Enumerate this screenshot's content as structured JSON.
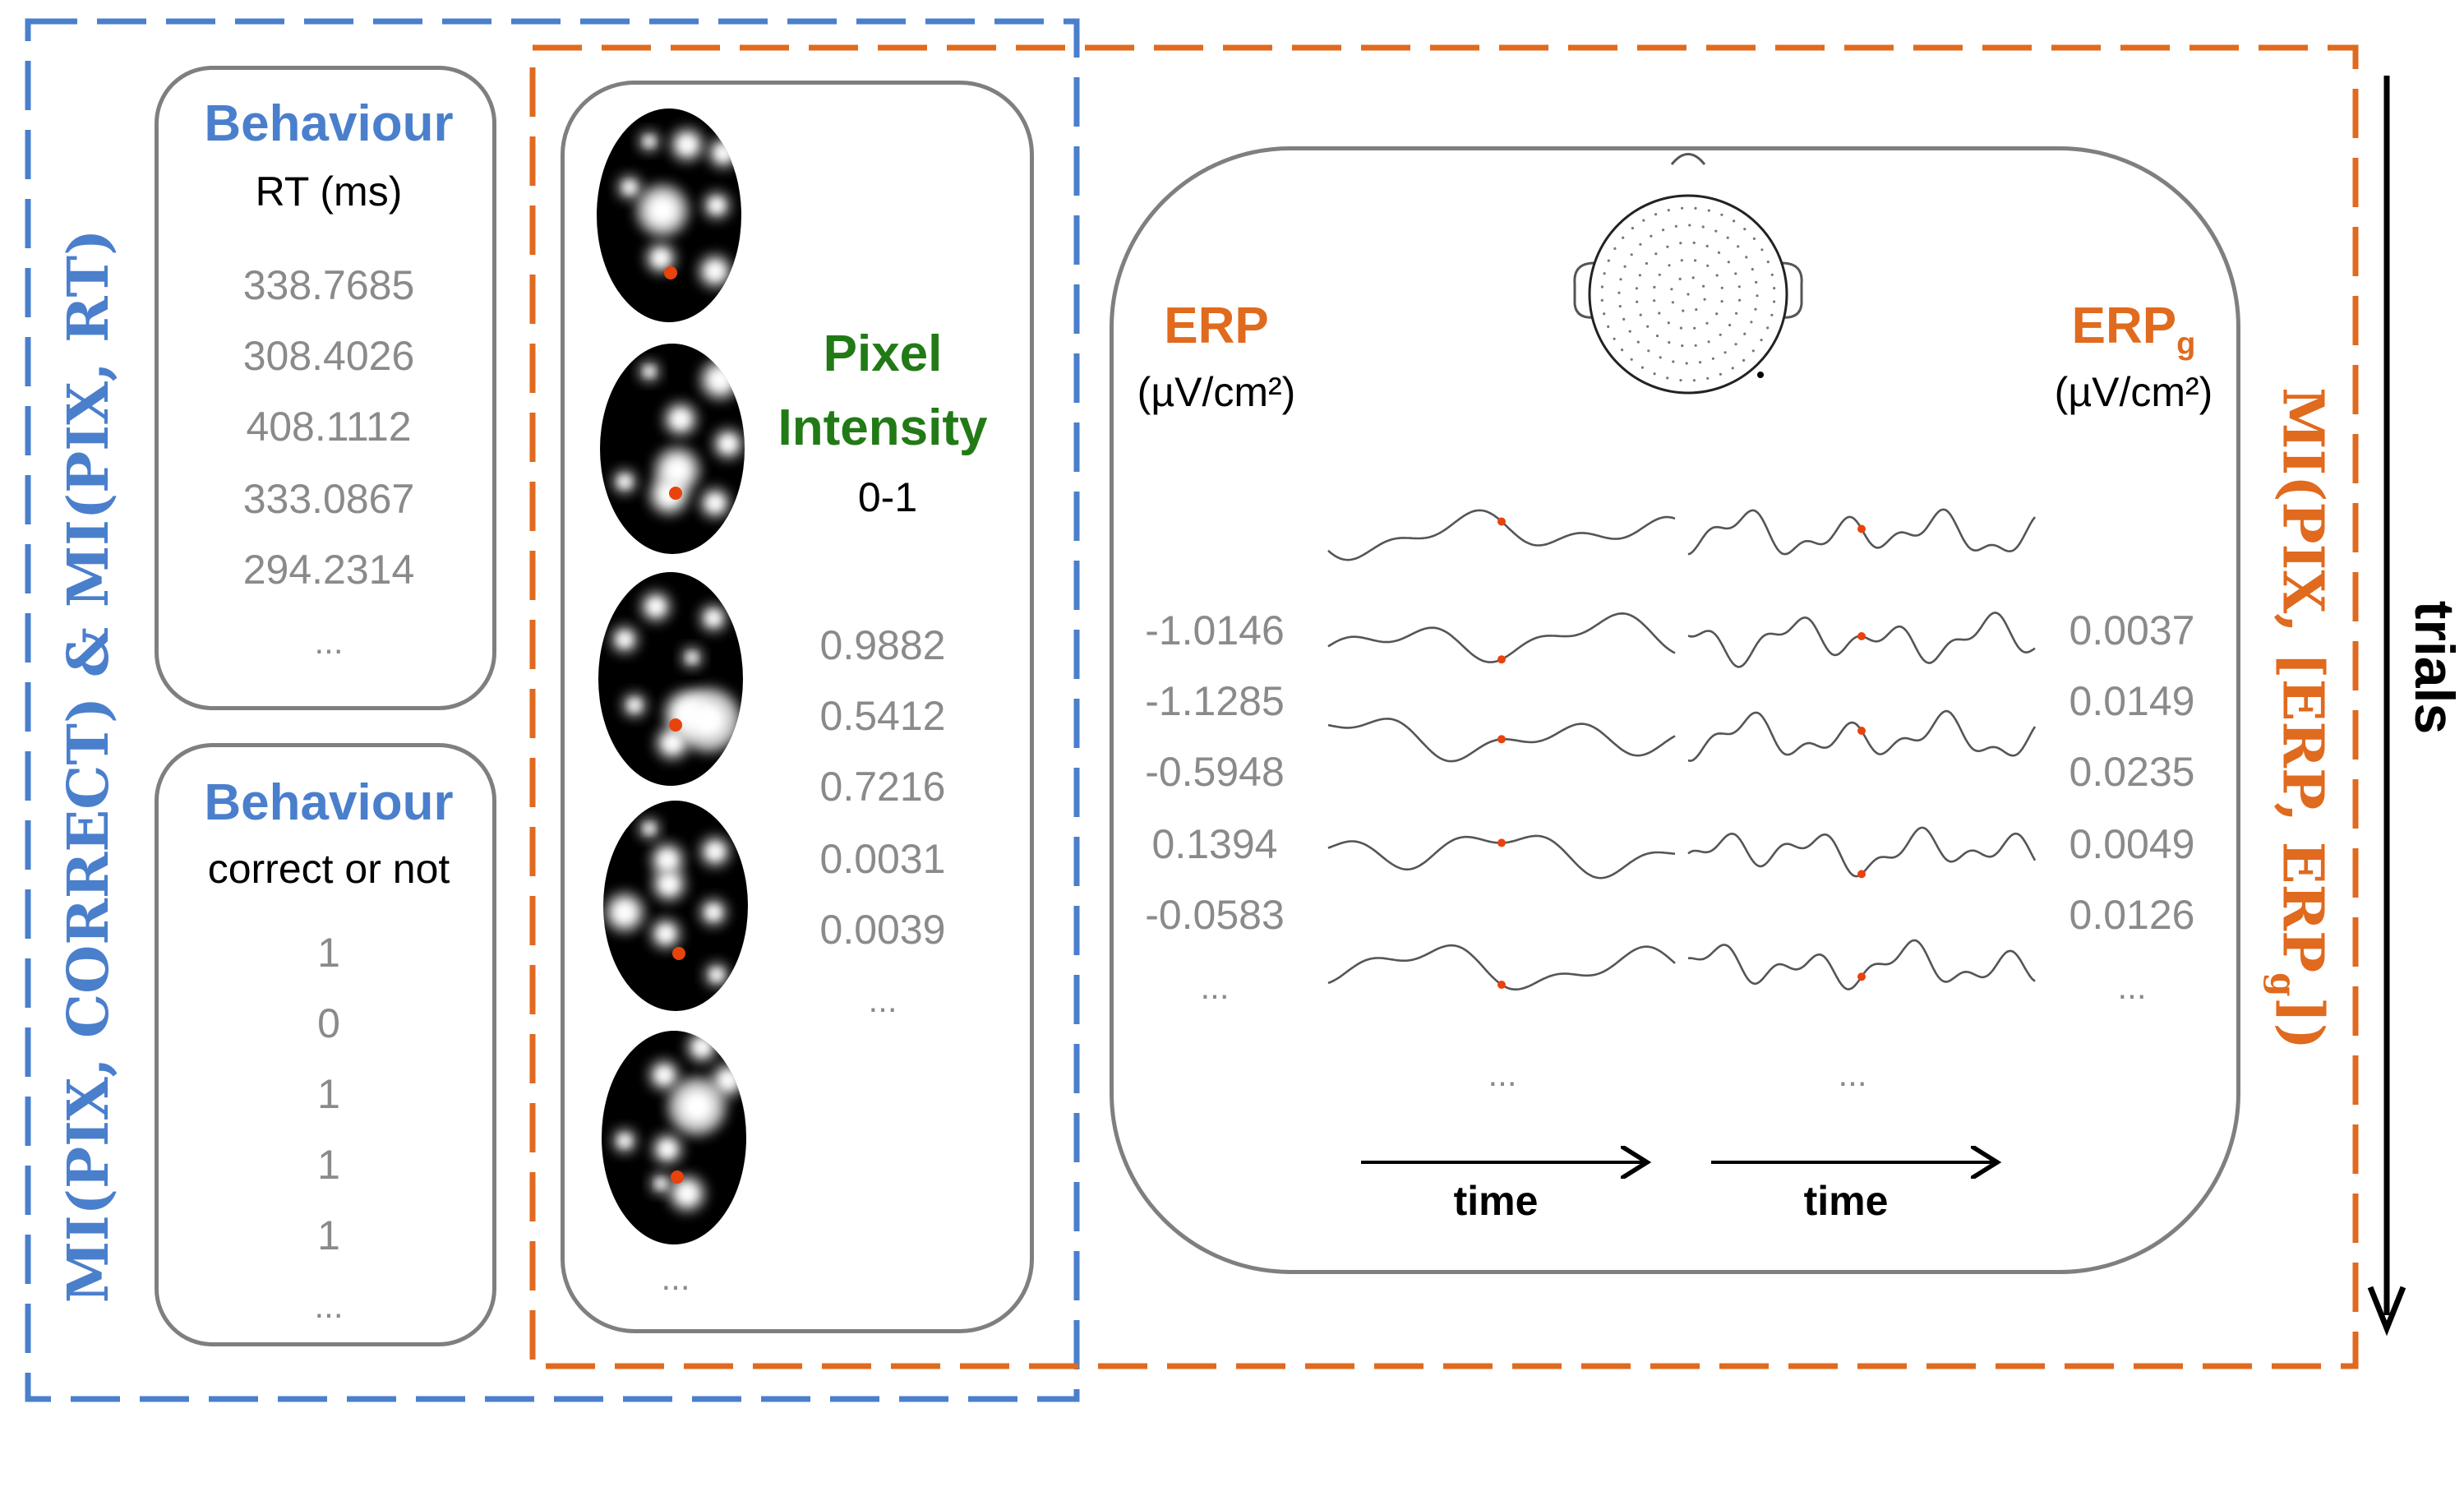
{
  "colors": {
    "blue": "#4a7fcc",
    "orange": "#e06a1e",
    "green": "#217a16",
    "gray_text": "#8a8a8a",
    "panel_border": "#7f7f7f"
  },
  "left_label": "MI(PIX, CORRECT) & MI(PIX, RT)",
  "right_label": {
    "main": "MI(PIX, [ERP, ERP",
    "sub": "g",
    "close": "])"
  },
  "trials_label": "trials",
  "rt_panel": {
    "title": "Behaviour",
    "subtitle": "RT (ms)",
    "values": [
      "338.7685",
      "308.4026",
      "408.1112",
      "333.0867",
      "294.2314",
      "..."
    ]
  },
  "correct_panel": {
    "title": "Behaviour",
    "subtitle": "correct or not",
    "values": [
      "1",
      "0",
      "1",
      "1",
      "1",
      "..."
    ]
  },
  "pixel_panel": {
    "title_line1": "Pixel",
    "title_line2": "Intensity",
    "subtitle": "0-1",
    "values": [
      "0.9882",
      "0.5412",
      "0.7216",
      "0.0031",
      "0.0039",
      "..."
    ],
    "more": "..."
  },
  "eeg_panel": {
    "erp_title": "ERP",
    "erp_unit": "(µV/cm²)",
    "erpg_title": "ERP",
    "erpg_sub": "g",
    "erpg_unit": "(µV/cm²)",
    "erp_values": [
      "-1.0146",
      "-1.1285",
      "-0.5948",
      "0.1394",
      "-0.0583",
      "..."
    ],
    "erpg_values": [
      "0.0037",
      "0.0149",
      "0.0235",
      "0.0049",
      "0.0126",
      "..."
    ],
    "more_left": "...",
    "more_right": "...",
    "time_left": "time",
    "time_right": "time"
  }
}
